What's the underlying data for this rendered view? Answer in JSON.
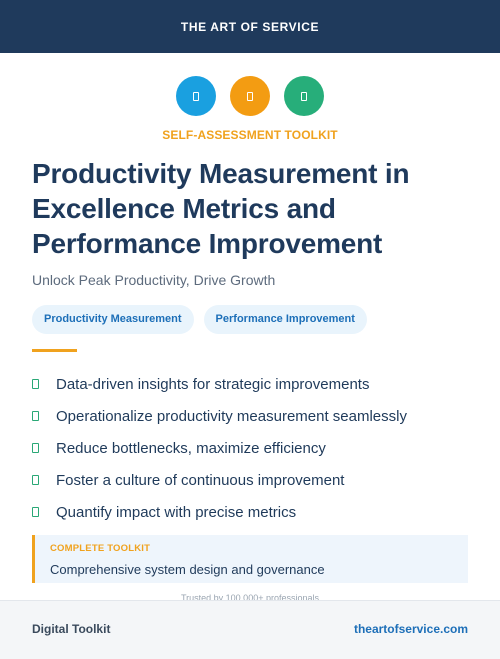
{
  "header": {
    "brand": "THE ART OF SERVICE"
  },
  "icons": [
    {
      "name": "document-icon",
      "color": "#1aa0e0"
    },
    {
      "name": "document-icon",
      "color": "#f39c12"
    },
    {
      "name": "document-icon",
      "color": "#27ae7a"
    }
  ],
  "kicker": "SELF-ASSESSMENT TOOLKIT",
  "title": "Productivity Measurement in Excellence Metrics and Performance Improvement",
  "subtitle": "Unlock Peak Productivity, Drive Growth",
  "tags": [
    "Productivity Measurement",
    "Performance Improvement"
  ],
  "bullets": [
    "Data-driven insights for strategic improvements",
    "Operationalize productivity measurement seamlessly",
    "Reduce bottlenecks, maximize efficiency",
    "Foster a culture of continuous improvement",
    "Quantify impact with precise metrics"
  ],
  "callout": {
    "label": "COMPLETE TOOLKIT",
    "text": "Comprehensive system design and governance"
  },
  "trusted": "Trusted by 100,000+ professionals",
  "footer": {
    "left": "Digital Toolkit",
    "right": "theartofservice.com"
  },
  "colors": {
    "navy": "#1f3a5c",
    "accent_orange": "#f0a21e",
    "link_blue": "#1d6fb8",
    "check_green": "#2aa876"
  }
}
